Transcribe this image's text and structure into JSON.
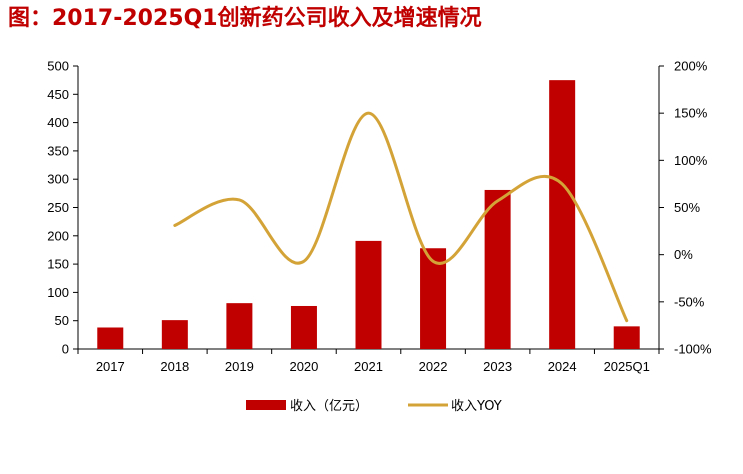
{
  "title": "图：2017-2025Q1创新药公司收入及增速情况",
  "chart_data": {
    "type": "bar",
    "categories": [
      "2017",
      "2018",
      "2019",
      "2020",
      "2021",
      "2022",
      "2023",
      "2024",
      "2025Q1"
    ],
    "series": [
      {
        "name": "收入（亿元）",
        "type": "bar",
        "axis": "left",
        "color": "#c00000",
        "values": [
          38,
          51,
          81,
          76,
          191,
          178,
          281,
          475,
          40
        ]
      },
      {
        "name": "收入YOY",
        "type": "line",
        "axis": "right",
        "color": "#d4a338",
        "values": [
          null,
          31,
          58,
          -7,
          150,
          -7,
          57,
          75,
          -70
        ]
      }
    ],
    "y_left": {
      "min": 0,
      "max": 500,
      "ticks": [
        "0",
        "50",
        "100",
        "150",
        "200",
        "250",
        "300",
        "350",
        "400",
        "450",
        "500"
      ]
    },
    "y_right": {
      "min": -100,
      "max": 200,
      "ticks": [
        "-100%",
        "-50%",
        "0%",
        "50%",
        "100%",
        "150%",
        "200%"
      ]
    },
    "legend": {
      "position": "bottom",
      "items": [
        "收入（亿元）",
        "收入YOY"
      ]
    },
    "grid": false
  }
}
